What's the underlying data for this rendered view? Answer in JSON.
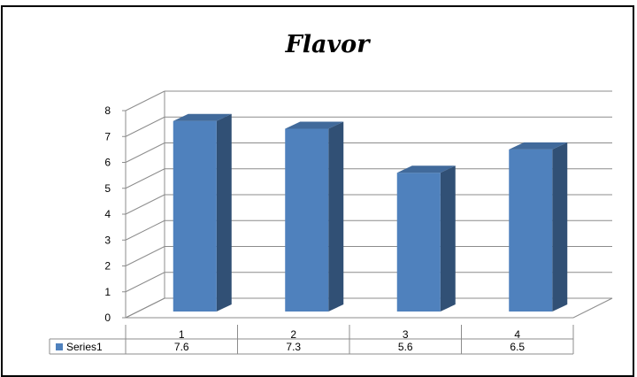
{
  "chart_data": {
    "type": "bar",
    "title": "Flavor",
    "categories": [
      "1",
      "2",
      "3",
      "4"
    ],
    "series": [
      {
        "name": "Series1",
        "values": [
          7.6,
          7.3,
          5.6,
          6.5
        ],
        "color": "#4f81bd"
      }
    ],
    "ylim": [
      0,
      8
    ],
    "yticks": [
      "0",
      "1",
      "2",
      "3",
      "4",
      "5",
      "6",
      "7",
      "8"
    ],
    "grid": true,
    "legend": "data-table-bottom",
    "data_table": {
      "key_label": "Series1",
      "cells": [
        "7.6",
        "7.3",
        "5.6",
        "6.5"
      ]
    }
  }
}
